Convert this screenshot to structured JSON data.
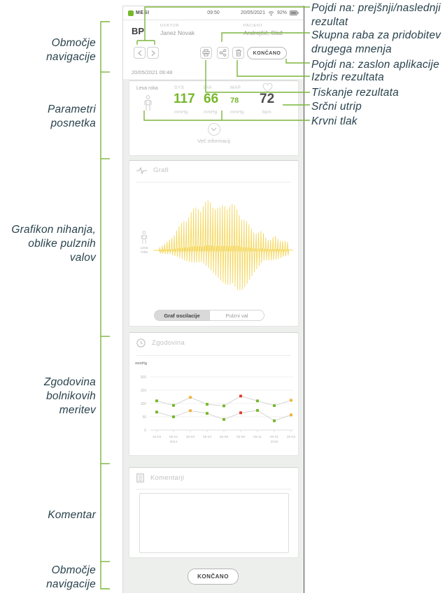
{
  "annotations": {
    "left": [
      "Območje\nnavigacije",
      "Parametri\nposnetka",
      "Grafikon nihanja,\noblike pulznih\nvalov",
      "Zgodovina\nbolnikovih\nmeritev",
      "Komentar",
      "Območje\nnavigacije"
    ],
    "right": [
      "Pojdi na: prejšnji/naslednji rezultat",
      "Skupna raba za pridobitev drugega mnenja",
      "Pojdi na: zaslon aplikacije",
      "Izbris rezultata",
      "Tiskanje rezultata",
      "Srčni utrip",
      "Krvni tlak"
    ]
  },
  "phone": {
    "status_bar": {
      "brand": "MESI",
      "time": "09:50",
      "date": "20/05/2021",
      "battery": "92%"
    },
    "header": {
      "app": "BP",
      "doctor_label": "DOKTOR",
      "doctor_name": "Janez Novak",
      "patient_label": "PACIENT",
      "patient_name": "Andrejčič, Blaž"
    },
    "toolbar": {
      "done": "KONČANO"
    },
    "record_datetime": "20/05/2021 09:48",
    "parameters": {
      "arm": "Leva roka",
      "sys_label": "SYS",
      "sys_value": "117",
      "sys_unit": "mmHg",
      "dia_label": "DIA",
      "dia_value": "66",
      "dia_unit": "mmHg",
      "map_label": "MAP",
      "map_value": "78",
      "map_unit": "mmHg",
      "pulse_value": "72",
      "pulse_unit": "bpm",
      "more_info": "Več informacij"
    },
    "graphs": {
      "title": "Grafi",
      "arm": "Leva\nroka",
      "toggle": [
        "Graf oscilacije",
        "Pulzni val"
      ],
      "toggle_selected": "Graf oscilacije"
    },
    "history": {
      "title": "Zgodovina"
    },
    "comments": {
      "title": "Komentarji",
      "value": ""
    },
    "footer": {
      "done": "KONČANO"
    }
  },
  "colors": {
    "accent_green": "#76b82a",
    "connector_green": "#7cb53c",
    "waveform_yellow": "#f3d44e",
    "annotation_text": "#29424c",
    "point_green": "#76b82a",
    "point_orange": "#f0b33c",
    "point_red": "#e23c30"
  },
  "icons": [
    "mesi-logo",
    "wifi-icon",
    "battery-icon",
    "prev-icon",
    "next-icon",
    "print-icon",
    "share-icon",
    "trash-icon",
    "heart-icon",
    "person-icon",
    "chevron-down-icon",
    "pulse-icon",
    "clock-icon",
    "document-icon"
  ],
  "chart_data": [
    {
      "type": "line",
      "title": "Graf oscilacije",
      "description": "Oscillometric cuff-pressure oscillation waveform, left arm",
      "num_pulses": 54,
      "envelope_up": [
        5,
        8,
        13,
        20,
        28,
        36,
        44,
        50,
        56,
        60,
        63,
        66,
        67,
        63,
        56,
        62,
        66,
        63,
        57,
        50,
        42,
        34,
        28,
        24,
        26,
        18,
        15,
        20,
        14,
        15,
        11
      ],
      "envelope_down": [
        4,
        5,
        6,
        8,
        9,
        11,
        13,
        15,
        17,
        19,
        21,
        24,
        27,
        31,
        37,
        44,
        52,
        58,
        60,
        54,
        45,
        36,
        29,
        24,
        19,
        16,
        14,
        12,
        10,
        8,
        7
      ]
    },
    {
      "type": "scatter-line",
      "title": "Zgodovina",
      "ylabel": "mmHg",
      "yticks": [
        200,
        150,
        100,
        50,
        0
      ],
      "ylim": [
        0,
        220
      ],
      "grid": true,
      "categories": [
        [
          "15-03",
          ""
        ],
        [
          "05-01",
          "2014"
        ],
        [
          "25-03",
          ""
        ],
        [
          "25-04",
          ""
        ],
        [
          "25-06",
          ""
        ],
        [
          "25-08",
          ""
        ],
        [
          "25-11",
          ""
        ],
        [
          "25-01",
          "2015"
        ],
        [
          "25-04",
          ""
        ]
      ],
      "series": [
        {
          "name": "SYS",
          "values": [
            110,
            93,
            123,
            97,
            91,
            128,
            110,
            92,
            112
          ],
          "point_colors": [
            "green",
            "green",
            "orange",
            "green",
            "green",
            "red",
            "green",
            "green",
            "orange"
          ]
        },
        {
          "name": "DIA",
          "values": [
            68,
            50,
            73,
            63,
            40,
            65,
            74,
            35,
            57
          ],
          "point_colors": [
            "green",
            "green",
            "orange",
            "green",
            "green",
            "red",
            "green",
            "green",
            "orange"
          ]
        }
      ]
    }
  ]
}
